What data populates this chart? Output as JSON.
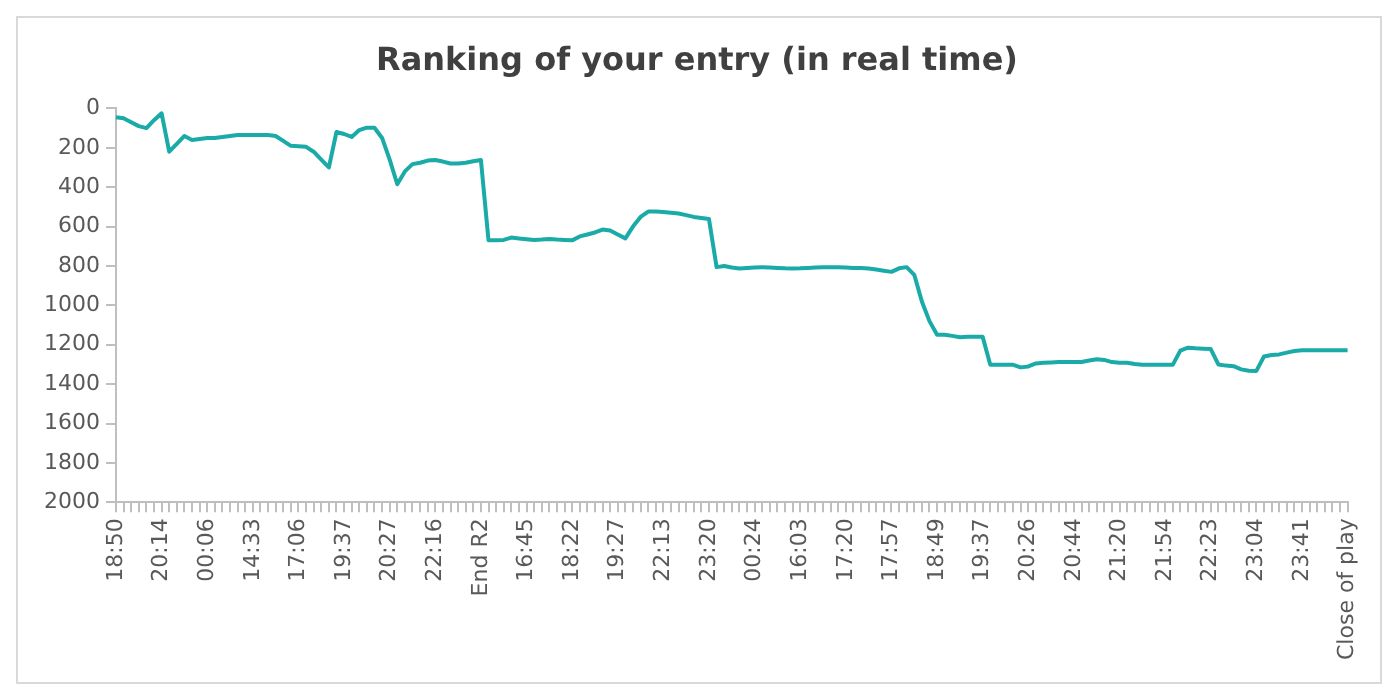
{
  "chart_data": {
    "type": "line",
    "title": "Ranking of your entry (in real time)",
    "categories": [
      "18:50",
      null,
      null,
      null,
      null,
      null,
      "20:14",
      null,
      null,
      null,
      null,
      null,
      "00:06",
      null,
      null,
      null,
      null,
      null,
      "14:33",
      null,
      null,
      null,
      null,
      null,
      "17:06",
      null,
      null,
      null,
      null,
      null,
      "19:37",
      null,
      null,
      null,
      null,
      null,
      "20:27",
      null,
      null,
      null,
      null,
      null,
      "22:16",
      null,
      null,
      null,
      null,
      null,
      "End R2",
      null,
      null,
      null,
      null,
      null,
      "16:45",
      null,
      null,
      null,
      null,
      null,
      "18:22",
      null,
      null,
      null,
      null,
      null,
      "19:27",
      null,
      null,
      null,
      null,
      null,
      "22:13",
      null,
      null,
      null,
      null,
      null,
      "23:20",
      null,
      null,
      null,
      null,
      null,
      "00:24",
      null,
      null,
      null,
      null,
      null,
      "16:03",
      null,
      null,
      null,
      null,
      null,
      "17:20",
      null,
      null,
      null,
      null,
      null,
      "17:57",
      null,
      null,
      null,
      null,
      null,
      "18:49",
      null,
      null,
      null,
      null,
      null,
      "19:37",
      null,
      null,
      null,
      null,
      null,
      "20:26",
      null,
      null,
      null,
      null,
      null,
      "20:44",
      null,
      null,
      null,
      null,
      null,
      "21:20",
      null,
      null,
      null,
      null,
      null,
      "21:54",
      null,
      null,
      null,
      null,
      null,
      "22:23",
      null,
      null,
      null,
      null,
      null,
      "23:04",
      null,
      null,
      null,
      null,
      null,
      "23:41",
      null,
      null,
      null,
      null,
      null,
      "Close of play"
    ],
    "values": [
      45,
      50,
      70,
      90,
      100,
      60,
      25,
      220,
      180,
      140,
      160,
      155,
      150,
      150,
      145,
      140,
      135,
      135,
      135,
      135,
      135,
      140,
      165,
      190,
      192,
      195,
      220,
      260,
      300,
      120,
      130,
      145,
      110,
      98,
      98,
      150,
      260,
      385,
      320,
      283,
      276,
      265,
      262,
      270,
      280,
      280,
      276,
      268,
      262,
      670,
      670,
      668,
      656,
      660,
      664,
      668,
      666,
      663,
      666,
      668,
      670,
      650,
      640,
      630,
      615,
      620,
      640,
      660,
      600,
      551,
      524,
      524,
      526,
      530,
      534,
      542,
      551,
      556,
      562,
      806,
      800,
      808,
      813,
      810,
      808,
      806,
      808,
      810,
      812,
      813,
      812,
      810,
      808,
      806,
      806,
      806,
      808,
      810,
      810,
      813,
      818,
      824,
      830,
      812,
      806,
      845,
      980,
      1080,
      1149,
      1149,
      1155,
      1162,
      1160,
      1159,
      1160,
      1302,
      1302,
      1302,
      1302,
      1315,
      1310,
      1295,
      1292,
      1290,
      1288,
      1288,
      1288,
      1288,
      1280,
      1274,
      1277,
      1288,
      1291,
      1291,
      1298,
      1302,
      1302,
      1302,
      1302,
      1302,
      1230,
      1215,
      1218,
      1220,
      1222,
      1300,
      1306,
      1309,
      1325,
      1332,
      1333,
      1260,
      1252,
      1249,
      1240,
      1232,
      1228,
      1228,
      1228,
      1228,
      1228,
      1228,
      1228
    ],
    "color": "#1aaba8",
    "ylim": [
      2000,
      0
    ],
    "yticks": [
      0,
      200,
      400,
      600,
      800,
      1000,
      1200,
      1400,
      1600,
      1800,
      2000
    ]
  }
}
